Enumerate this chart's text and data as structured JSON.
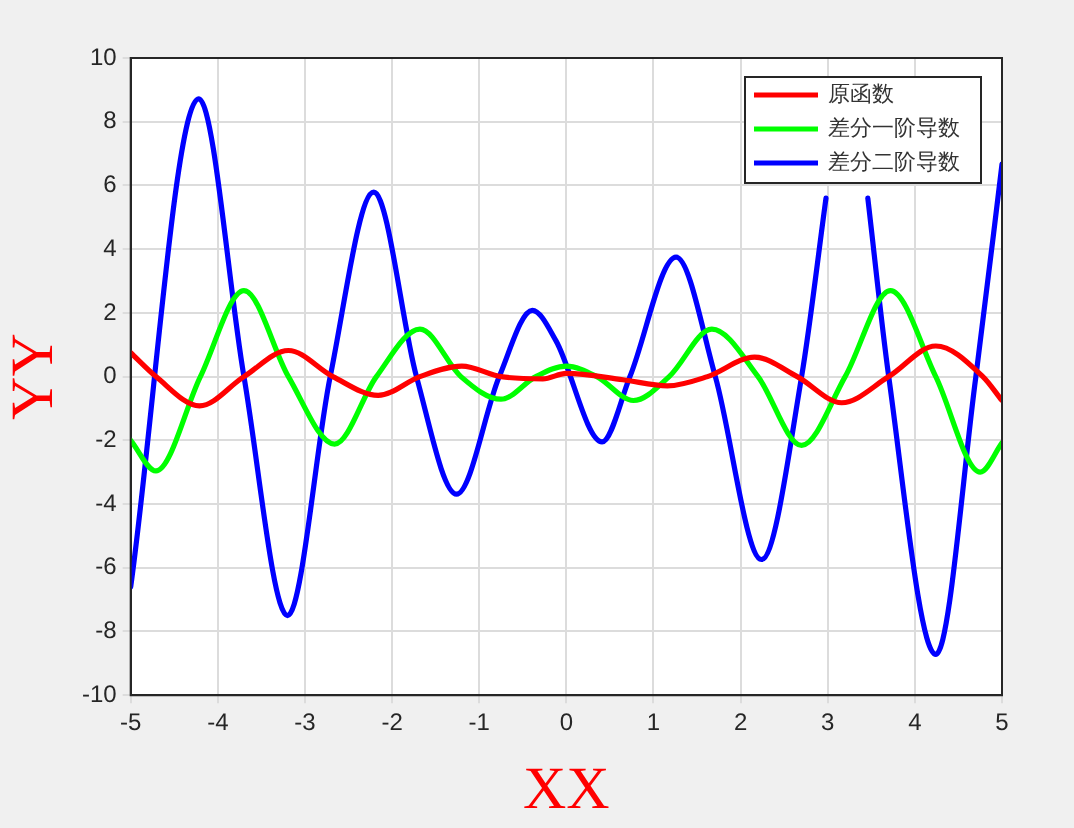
{
  "chart_data": {
    "type": "line",
    "xlabel": "XX",
    "ylabel": "YY",
    "xlim": [
      -5,
      5
    ],
    "xticks": [
      -5,
      -4,
      -3,
      -2,
      -1,
      0,
      1,
      2,
      3,
      4,
      5
    ],
    "ylim": [
      -10,
      10
    ],
    "yticks": [
      -10,
      -8,
      -6,
      -4,
      -2,
      0,
      2,
      4,
      6,
      8,
      10
    ],
    "grid": true,
    "legend": "top right",
    "marker": "none",
    "line_style": "solid",
    "series": [
      {
        "name": "原函数",
        "color": "#ff0000",
        "x": [
          -5,
          -4.71,
          -4.21,
          -3.7,
          -3.19,
          -2.68,
          -2.16,
          -1.68,
          -1.2,
          -0.75,
          -0.27,
          0,
          0.65,
          1.16,
          1.62,
          2.16,
          2.65,
          3.16,
          3.7,
          4.24,
          4.78,
          5
        ],
        "values": [
          0.75,
          0,
          -0.92,
          0,
          0.82,
          0,
          -0.59,
          0,
          0.33,
          0,
          -0.07,
          0.1,
          -0.1,
          -0.29,
          0,
          0.61,
          0,
          -0.82,
          0,
          0.96,
          0,
          -0.75
        ]
      },
      {
        "name": "差分一阶导数",
        "color": "#00ff00",
        "x": [
          -5,
          -4.71,
          -4.2,
          -3.7,
          -3.19,
          -2.66,
          -2.18,
          -1.68,
          -1.21,
          -0.75,
          -0.35,
          0,
          0.35,
          0.77,
          1.18,
          1.67,
          2.2,
          2.7,
          3.2,
          3.72,
          4.24,
          4.75,
          5
        ],
        "values": [
          -2.0,
          -2.96,
          0,
          2.7,
          0,
          -2.12,
          0,
          1.49,
          0,
          -0.71,
          0,
          0.33,
          0,
          -0.75,
          0,
          1.49,
          0,
          -2.16,
          0,
          2.7,
          0,
          -3.0,
          -2.08
        ]
      },
      {
        "name": "差分二阶导数",
        "color": "#0000ff",
        "x": [
          -5,
          -4.22,
          -3.7,
          -3.2,
          -2.71,
          -2.21,
          -1.72,
          -1.26,
          -0.77,
          -0.39,
          -0.12,
          0.41,
          0.73,
          1.26,
          1.71,
          2.24,
          2.7,
          2.98,
          3.3,
          3.46,
          3.7,
          4.24,
          4.7,
          5
        ],
        "values": [
          -6.6,
          8.72,
          0,
          -7.5,
          0,
          5.79,
          0,
          -3.69,
          0,
          2.08,
          1.13,
          -2.05,
          0,
          3.75,
          0,
          -5.74,
          0,
          5.6,
          null,
          5.6,
          0,
          -8.72,
          0,
          6.67
        ]
      }
    ]
  }
}
